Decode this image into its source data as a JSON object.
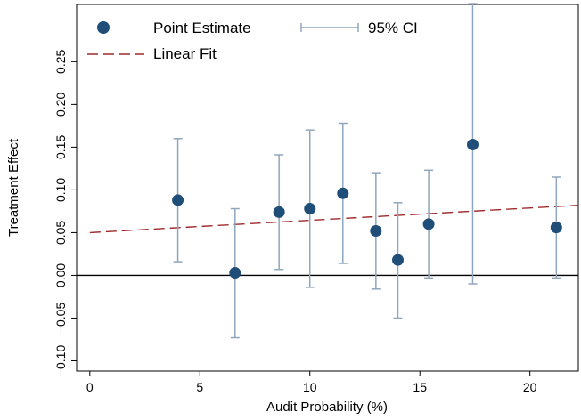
{
  "chart_data": {
    "type": "scatter",
    "xlabel": "Audit Probability (%)",
    "ylabel": "Treatment Effect",
    "xlim": [
      -0.6,
      22.2
    ],
    "ylim": [
      -0.112,
      0.317
    ],
    "xticks": [
      0,
      5,
      10,
      15,
      20
    ],
    "yticks": [
      -0.1,
      -0.05,
      0.0,
      0.05,
      0.1,
      0.15,
      0.2,
      0.25
    ],
    "xtick_labels": [
      "0",
      "5",
      "10",
      "15",
      "20"
    ],
    "ytick_labels": [
      "−0.10",
      "−0.05",
      "0.00",
      "0.05",
      "0.10",
      "0.15",
      "0.20",
      "0.25"
    ],
    "grid": false,
    "legend_position": "top-left",
    "legend": {
      "point": "Point Estimate",
      "ci": "95% CI",
      "fit": "Linear Fit"
    },
    "colors": {
      "point": "#1f4e79",
      "ci": "#8fa7bd",
      "fit": "#9e2a2b",
      "zero_line": "#000000"
    },
    "series": [
      {
        "name": "Point Estimate",
        "x": [
          4.0,
          6.6,
          8.6,
          10.0,
          11.5,
          13.0,
          14.0,
          15.4,
          17.4,
          21.2
        ],
        "y": [
          0.088,
          0.003,
          0.074,
          0.078,
          0.096,
          0.052,
          0.018,
          0.06,
          0.153,
          0.056
        ],
        "ci_low": [
          0.016,
          -0.073,
          0.007,
          -0.014,
          0.014,
          -0.016,
          -0.05,
          -0.003,
          -0.01,
          -0.003
        ],
        "ci_high": [
          0.16,
          0.078,
          0.141,
          0.17,
          0.178,
          0.12,
          0.085,
          0.123,
          0.318,
          0.115
        ]
      }
    ],
    "fit_line": {
      "name": "Linear Fit",
      "x": [
        0,
        22.2
      ],
      "y": [
        0.05,
        0.082
      ]
    },
    "reference_line_y": 0
  }
}
